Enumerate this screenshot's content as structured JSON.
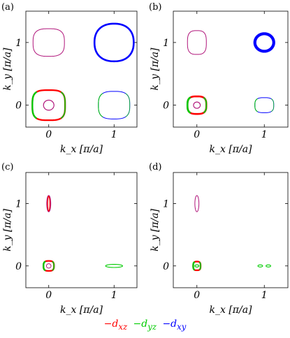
{
  "panels": [
    {
      "label": "(a)",
      "xlabel": "k_x [π/a]",
      "ylabel": "k_y [π/a]",
      "xticks": [
        "0",
        "1"
      ],
      "yticks": [
        "0",
        "1"
      ]
    },
    {
      "label": "(b)",
      "xlabel": "k_x [π/a]",
      "ylabel": "k_y [π/a]",
      "xticks": [
        "0",
        "1"
      ],
      "yticks": [
        "0",
        "1"
      ]
    },
    {
      "label": "(c)",
      "xlabel": "k_x [π/a]",
      "ylabel": "k_y [π/a]",
      "xticks": [
        "0",
        "1"
      ],
      "yticks": [
        "0",
        "1"
      ]
    },
    {
      "label": "(d)",
      "xlabel": "k_x [π/a]",
      "ylabel": "k_y [π/a]",
      "xticks": [
        "0",
        "1"
      ],
      "yticks": [
        "0",
        "1"
      ]
    }
  ],
  "legend": [
    {
      "label": "−d_xz",
      "color": "#ff0000"
    },
    {
      "label": "−d_yz",
      "color": "#00cc00"
    },
    {
      "label": "−d_xy",
      "color": "#0000ff"
    }
  ],
  "colors": {
    "xz": "#ff0000",
    "yz": "#00cc00",
    "xy": "#0000ff",
    "mix": "#b0147a"
  },
  "chart_data": [
    {
      "type": "scatter",
      "panel": "(a)",
      "xlim": [
        -0.35,
        1.35
      ],
      "ylim": [
        -0.35,
        1.5
      ],
      "contours": [
        {
          "center": [
            0,
            1
          ],
          "rx": 0.24,
          "ry": 0.22,
          "shape": 3,
          "color": "mix",
          "weight": 1
        },
        {
          "center": [
            1,
            1
          ],
          "rx": 0.3,
          "ry": 0.3,
          "shape": 2.3,
          "color": "xy",
          "weight": 2.6
        },
        {
          "center": [
            0,
            0
          ],
          "rx": 0.25,
          "ry": 0.24,
          "shape": 3.4,
          "color": "xz",
          "weight": 2.3,
          "partial": "yz"
        },
        {
          "center": [
            0,
            0
          ],
          "rx": 0.08,
          "ry": 0.08,
          "shape": 2,
          "color": "mix",
          "weight": 1.2
        },
        {
          "center": [
            1,
            0
          ],
          "rx": 0.24,
          "ry": 0.22,
          "shape": 3,
          "color": "xy",
          "weight": 1,
          "partial": "yz"
        }
      ]
    },
    {
      "type": "scatter",
      "panel": "(b)",
      "xlim": [
        -0.35,
        1.35
      ],
      "ylim": [
        -0.35,
        1.5
      ],
      "contours": [
        {
          "center": [
            0,
            1
          ],
          "rx": 0.14,
          "ry": 0.19,
          "shape": 3,
          "color": "mix",
          "weight": 1
        },
        {
          "center": [
            1,
            1
          ],
          "rx": 0.14,
          "ry": 0.14,
          "shape": 2,
          "color": "xy",
          "weight": 4.2
        },
        {
          "center": [
            0,
            0
          ],
          "rx": 0.14,
          "ry": 0.14,
          "shape": 3,
          "color": "xz",
          "weight": 2.6,
          "partial": "yz"
        },
        {
          "center": [
            0,
            0
          ],
          "rx": 0.05,
          "ry": 0.05,
          "shape": 2,
          "color": "mix",
          "weight": 1.2
        },
        {
          "center": [
            1,
            0
          ],
          "rx": 0.14,
          "ry": 0.12,
          "shape": 3,
          "color": "xy",
          "weight": 1,
          "partial": "yz"
        }
      ]
    },
    {
      "type": "scatter",
      "panel": "(c)",
      "xlim": [
        -0.35,
        1.35
      ],
      "ylim": [
        -0.35,
        1.5
      ],
      "contours": [
        {
          "center": [
            0,
            1
          ],
          "rx": 0.03,
          "ry": 0.13,
          "shape": 2,
          "color": "mix",
          "weight": 1.2,
          "inner": "xz"
        },
        {
          "center": [
            0,
            0
          ],
          "rx": 0.08,
          "ry": 0.08,
          "shape": 3,
          "color": "xz",
          "weight": 2.3,
          "partial": "yz"
        },
        {
          "center": [
            0,
            0
          ],
          "rx": 0.035,
          "ry": 0.035,
          "shape": 2,
          "color": "mix",
          "weight": 1
        },
        {
          "center": [
            1,
            0
          ],
          "rx": 0.13,
          "ry": 0.025,
          "shape": 2,
          "color": "yz",
          "weight": 1.1
        }
      ]
    },
    {
      "type": "scatter",
      "panel": "(d)",
      "xlim": [
        -0.35,
        1.35
      ],
      "ylim": [
        -0.35,
        1.5
      ],
      "contours": [
        {
          "center": [
            0,
            1
          ],
          "rx": 0.03,
          "ry": 0.13,
          "shape": 2,
          "color": "mix",
          "weight": 1
        },
        {
          "center": [
            0,
            0
          ],
          "rx": 0.055,
          "ry": 0.07,
          "shape": 3,
          "color": "xz",
          "weight": 2.3,
          "partial": "yz"
        },
        {
          "center": [
            0,
            0
          ],
          "rx": 0.03,
          "ry": 0.018,
          "shape": 2,
          "color": "yz",
          "weight": 1.2
        },
        {
          "center": [
            0.94,
            0
          ],
          "rx": 0.035,
          "ry": 0.017,
          "shape": 2,
          "color": "yz",
          "weight": 1.1
        },
        {
          "center": [
            1.06,
            0
          ],
          "rx": 0.035,
          "ry": 0.017,
          "shape": 2,
          "color": "yz",
          "weight": 1.1
        }
      ]
    }
  ]
}
